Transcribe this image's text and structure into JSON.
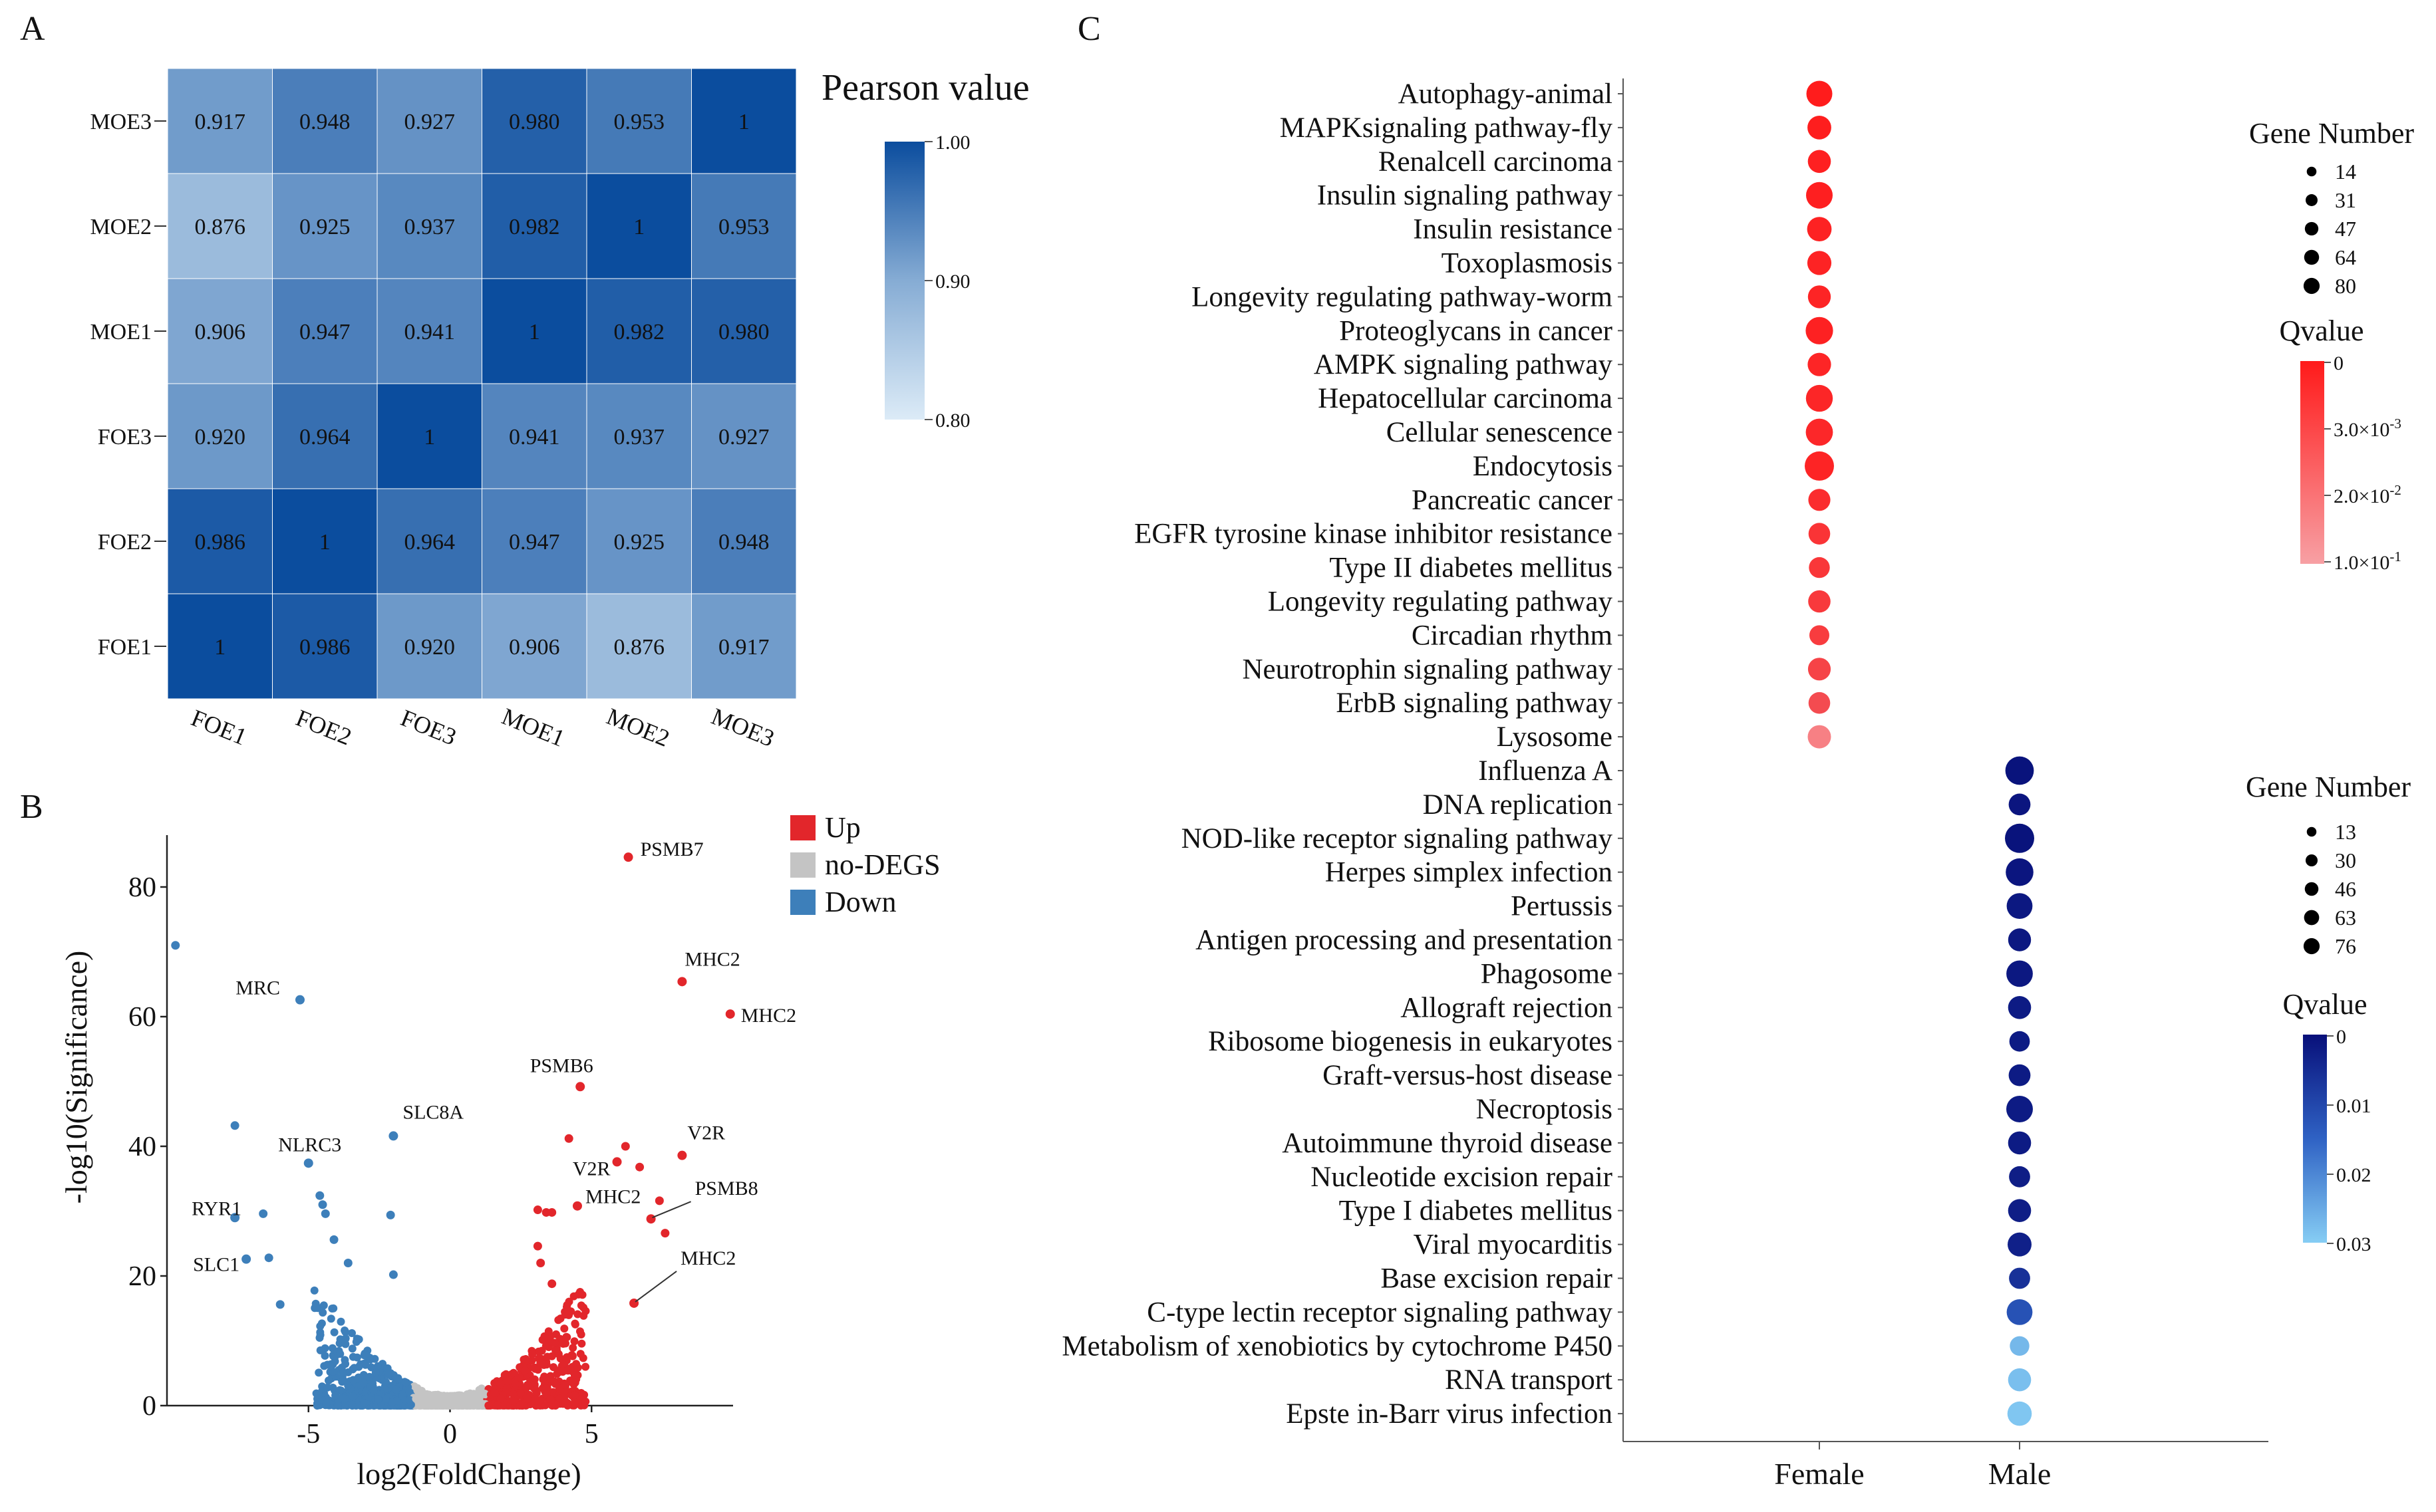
{
  "chart_data": [
    {
      "panel": "A",
      "type": "heatmap",
      "legend_title": "Pearson value",
      "colorbar_ticks": [
        "1.00",
        "0.90",
        "0.80"
      ],
      "colorbar_range": [
        0.8,
        1.0
      ],
      "rows": [
        "MOE3",
        "MOE2",
        "MOE1",
        "FOE3",
        "FOE2",
        "FOE1"
      ],
      "cols": [
        "FOE1",
        "FOE2",
        "FOE3",
        "MOE1",
        "MOE2",
        "MOE3"
      ],
      "values": [
        [
          "0.917",
          "0.948",
          "0.927",
          "0.980",
          "0.953",
          "1"
        ],
        [
          "0.876",
          "0.925",
          "0.937",
          "0.982",
          "1",
          "0.953"
        ],
        [
          "0.906",
          "0.947",
          "0.941",
          "1",
          "0.982",
          "0.980"
        ],
        [
          "0.920",
          "0.964",
          "1",
          "0.941",
          "0.937",
          "0.927"
        ],
        [
          "0.986",
          "1",
          "0.964",
          "0.947",
          "0.925",
          "0.948"
        ],
        [
          "1",
          "0.986",
          "0.920",
          "0.906",
          "0.876",
          "0.917"
        ]
      ]
    },
    {
      "panel": "B",
      "type": "scatter",
      "xlabel": "log2(FoldChange)",
      "ylabel": "-log10(Significance)",
      "xlim": [
        -10,
        10
      ],
      "ylim": [
        0,
        88
      ],
      "x_ticks": [
        "-5",
        "0",
        "5"
      ],
      "y_ticks": [
        "0",
        "20",
        "40",
        "60",
        "80"
      ],
      "legend": [
        {
          "label": "Up",
          "color": "#e2262b"
        },
        {
          "label": "no-DEGS",
          "color": "#c4c4c4"
        },
        {
          "label": "Down",
          "color": "#3d7fba"
        }
      ],
      "labeled_points": [
        {
          "label": "PSMB7",
          "x": 6.3,
          "y": 84.6,
          "group": "up"
        },
        {
          "label": "MHC2",
          "x": 8.2,
          "y": 65.4,
          "group": "up"
        },
        {
          "label": "MHC2",
          "x": 9.9,
          "y": 60.4,
          "group": "up"
        },
        {
          "label": "PSMB6",
          "x": 4.6,
          "y": 49.2,
          "group": "up"
        },
        {
          "label": "V2R",
          "x": 5.9,
          "y": 37.6,
          "group": "up"
        },
        {
          "label": "V2R",
          "x": 8.2,
          "y": 38.6,
          "group": "up"
        },
        {
          "label": "MHC2",
          "x": 4.5,
          "y": 30.8,
          "group": "up"
        },
        {
          "label": "PSMB8",
          "x": 7.1,
          "y": 28.8,
          "group": "up"
        },
        {
          "label": "MHC2",
          "x": 6.5,
          "y": 15.8,
          "group": "up"
        },
        {
          "label": "MRC",
          "x": -5.3,
          "y": 62.6,
          "group": "down"
        },
        {
          "label": "SLC8A",
          "x": -2.0,
          "y": 41.6,
          "group": "down"
        },
        {
          "label": "NLRC3",
          "x": -5.0,
          "y": 37.4,
          "group": "down"
        },
        {
          "label": "RYR1",
          "x": -7.6,
          "y": 29.0,
          "group": "down"
        },
        {
          "label": "SLC1",
          "x": -7.2,
          "y": 22.6,
          "group": "down"
        }
      ],
      "other_points": {
        "down": [
          [
            -9.7,
            71.0
          ],
          [
            -7.6,
            43.2
          ],
          [
            -6.6,
            29.6
          ],
          [
            -6.4,
            22.8
          ],
          [
            -6.0,
            15.6
          ],
          [
            -4.6,
            32.4
          ],
          [
            -4.5,
            31.0
          ],
          [
            -4.4,
            29.6
          ],
          [
            -4.1,
            25.6
          ],
          [
            -3.6,
            22.0
          ],
          [
            -2.1,
            29.4
          ],
          [
            -2.0,
            20.2
          ]
        ],
        "up": [
          [
            3.1,
            30.2
          ],
          [
            3.4,
            29.8
          ],
          [
            3.6,
            29.8
          ],
          [
            3.1,
            24.6
          ],
          [
            4.2,
            41.2
          ],
          [
            6.2,
            40.0
          ],
          [
            6.7,
            36.8
          ],
          [
            7.4,
            31.6
          ],
          [
            7.6,
            26.6
          ],
          [
            3.2,
            22.0
          ],
          [
            3.6,
            18.8
          ]
        ]
      }
    },
    {
      "panel": "C",
      "type": "scatter",
      "subtype": "bubble",
      "x_categories": [
        "Female",
        "Male"
      ],
      "female": {
        "size_legend_title": "Gene Number",
        "size_legend": [
          "14",
          "31",
          "47",
          "64",
          "80"
        ],
        "color_legend_title": "Qvalue",
        "color_ticks": [
          "0",
          "3.0×10",
          "2.0×10",
          "1.0×10"
        ],
        "color_tick_exponents": [
          "-3",
          "-2",
          "-1"
        ],
        "terms": [
          "Autophagy-animal",
          "MAPKsignaling pathway-fly",
          "Renalcell carcinoma",
          "Insulin signaling pathway",
          "Insulin resistance",
          "Toxoplasmosis",
          "Longevity regulating pathway-worm",
          "Proteoglycans in cancer",
          "AMPK signaling pathway",
          "Hepatocellular carcinoma",
          "Cellular senescence",
          "Endocytosis",
          "Pancreatic cancer",
          "EGFR tyrosine kinase inhibitor resistance",
          "Type II diabetes mellitus",
          "Longevity regulating pathway",
          "Circadian rhythm",
          "Neurotrophin signaling pathway",
          "ErbB signaling pathway",
          "Lysosome"
        ],
        "gene_number": [
          56,
          42,
          38,
          60,
          46,
          44,
          37,
          66,
          40,
          62,
          64,
          80,
          33,
          31,
          27,
          34,
          23,
          36,
          31,
          39
        ],
        "qvalue_rank": [
          0.02,
          0.04,
          0.06,
          0.05,
          0.08,
          0.09,
          0.1,
          0.07,
          0.11,
          0.12,
          0.13,
          0.1,
          0.18,
          0.25,
          0.28,
          0.3,
          0.33,
          0.4,
          0.48,
          0.78
        ]
      },
      "male": {
        "size_legend_title": "Gene Number",
        "size_legend": [
          "13",
          "30",
          "46",
          "63",
          "76"
        ],
        "color_legend_title": "Qvalue",
        "color_ticks": [
          "0",
          "0.01",
          "0.02",
          "0.03"
        ],
        "color_range": [
          0,
          0.03
        ],
        "terms": [
          "Influenza A",
          "DNA replication",
          "NOD-like receptor signaling pathway",
          "Herpes simplex infection",
          "Pertussis",
          "Antigen processing and presentation",
          "Phagosome",
          "Allograft rejection",
          "Ribosome biogenesis in eukaryotes",
          "Graft-versus-host disease",
          "Necroptosis",
          "Autoimmune thyroid disease",
          "Nucleotide excision repair",
          "Type I diabetes mellitus",
          "Viral myocarditis",
          "Base excision repair",
          "C-type lectin receptor signaling pathway",
          "Metabolism of xenobiotics by cytochrome P450",
          "RNA transport",
          "Epste in-Barr virus infection"
        ],
        "gene_number": [
          70,
          30,
          76,
          64,
          52,
          35,
          56,
          36,
          24,
          30,
          57,
          36,
          27,
          36,
          41,
          27,
          52,
          20,
          36,
          43
        ],
        "qvalue": [
          0.0005,
          0.001,
          0.0005,
          0.001,
          0.0015,
          0.0015,
          0.0015,
          0.002,
          0.002,
          0.002,
          0.002,
          0.002,
          0.0025,
          0.0025,
          0.003,
          0.006,
          0.012,
          0.027,
          0.028,
          0.029
        ]
      }
    }
  ]
}
